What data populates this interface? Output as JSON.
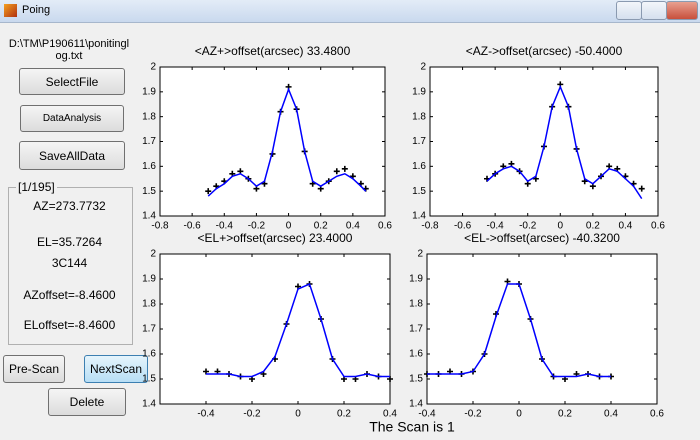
{
  "window": {
    "title": "Poing"
  },
  "panel": {
    "file_path": "D:\\TM\\P190611\\ponitinglog.txt",
    "buttons": [
      "SelectFile",
      "DataAnalysis",
      "SaveAllData",
      "Pre-Scan",
      "NextScan",
      "Delete"
    ],
    "group_label": "[1/195]",
    "info": [
      "AZ=273.7732",
      "EL=35.7264",
      "3C144",
      "AZoffset=-8.4600",
      "ELoffset=-8.4600"
    ]
  },
  "footer": "The Scan  is 1",
  "plots": [
    {
      "type": "scatter-fit",
      "title": "<AZ+>offset(arcsec)  33.4800",
      "xlim": [
        -0.8,
        0.6
      ],
      "xticks": [
        -0.8,
        -0.6,
        -0.4,
        -0.2,
        0,
        0.2,
        0.4,
        0.6
      ],
      "ylim": [
        1.4,
        2
      ],
      "yticks": [
        1.4,
        1.5,
        1.6,
        1.7,
        1.8,
        1.9,
        2
      ],
      "x": [
        -0.5,
        -0.45,
        -0.4,
        -0.35,
        -0.3,
        -0.25,
        -0.2,
        -0.15,
        -0.1,
        -0.05,
        0,
        0.05,
        0.1,
        0.15,
        0.2,
        0.25,
        0.3,
        0.35,
        0.4,
        0.45,
        0.48
      ],
      "series": [
        {
          "color": "#000000",
          "values": [
            1.5,
            1.52,
            1.54,
            1.57,
            1.58,
            1.55,
            1.51,
            1.53,
            1.65,
            1.82,
            1.92,
            1.83,
            1.66,
            1.53,
            1.51,
            1.54,
            1.58,
            1.59,
            1.56,
            1.53,
            1.51
          ]
        },
        {
          "color": "#0000ff",
          "values": [
            1.48,
            1.51,
            1.53,
            1.56,
            1.57,
            1.55,
            1.52,
            1.54,
            1.66,
            1.82,
            1.91,
            1.83,
            1.66,
            1.54,
            1.52,
            1.54,
            1.56,
            1.57,
            1.55,
            1.52,
            1.5
          ]
        }
      ]
    },
    {
      "type": "scatter-fit",
      "title": "<AZ->offset(arcsec)  -50.4000",
      "xlim": [
        -0.8,
        0.6
      ],
      "xticks": [
        -0.8,
        -0.6,
        -0.4,
        -0.2,
        0,
        0.2,
        0.4,
        0.6
      ],
      "ylim": [
        1.4,
        2
      ],
      "yticks": [
        1.4,
        1.5,
        1.6,
        1.7,
        1.8,
        1.9,
        2
      ],
      "x": [
        -0.45,
        -0.4,
        -0.35,
        -0.3,
        -0.25,
        -0.2,
        -0.15,
        -0.1,
        -0.05,
        0,
        0.05,
        0.1,
        0.15,
        0.2,
        0.25,
        0.3,
        0.35,
        0.4,
        0.45,
        0.5
      ],
      "series": [
        {
          "color": "#000000",
          "values": [
            1.55,
            1.57,
            1.6,
            1.61,
            1.58,
            1.53,
            1.55,
            1.68,
            1.84,
            1.93,
            1.84,
            1.67,
            1.54,
            1.52,
            1.56,
            1.6,
            1.59,
            1.56,
            1.53,
            1.51
          ]
        },
        {
          "color": "#0000ff",
          "values": [
            1.54,
            1.57,
            1.59,
            1.6,
            1.58,
            1.54,
            1.56,
            1.68,
            1.84,
            1.92,
            1.84,
            1.67,
            1.55,
            1.53,
            1.56,
            1.59,
            1.58,
            1.55,
            1.52,
            1.47
          ]
        }
      ]
    },
    {
      "type": "scatter-fit",
      "title": "<EL+>offset(arcsec)  23.4000",
      "xlim": [
        -0.6,
        0.4
      ],
      "xticks": [
        -0.4,
        -0.2,
        0,
        0.2,
        0.4
      ],
      "ylim": [
        1.4,
        2
      ],
      "yticks": [
        1.4,
        1.5,
        1.6,
        1.7,
        1.8,
        1.9,
        2
      ],
      "x": [
        -0.4,
        -0.35,
        -0.3,
        -0.25,
        -0.2,
        -0.15,
        -0.1,
        -0.05,
        0,
        0.05,
        0.1,
        0.15,
        0.2,
        0.25,
        0.3,
        0.35,
        0.4
      ],
      "series": [
        {
          "color": "#000000",
          "values": [
            1.53,
            1.53,
            1.52,
            1.51,
            1.5,
            1.52,
            1.58,
            1.72,
            1.87,
            1.88,
            1.74,
            1.58,
            1.5,
            1.5,
            1.52,
            1.51,
            1.5
          ]
        },
        {
          "color": "#0000ff",
          "values": [
            1.52,
            1.52,
            1.52,
            1.51,
            1.51,
            1.53,
            1.59,
            1.72,
            1.86,
            1.88,
            1.74,
            1.58,
            1.51,
            1.51,
            1.52,
            1.51,
            1.51
          ]
        }
      ]
    },
    {
      "type": "scatter-fit",
      "title": "<EL->offset(arcsec)  -40.3200",
      "xlim": [
        -0.4,
        0.6
      ],
      "xticks": [
        -0.4,
        -0.2,
        0,
        0.2,
        0.4,
        0.6
      ],
      "ylim": [
        1.4,
        2
      ],
      "yticks": [
        1.4,
        1.5,
        1.6,
        1.7,
        1.8,
        1.9,
        2
      ],
      "x": [
        -0.4,
        -0.35,
        -0.3,
        -0.25,
        -0.2,
        -0.15,
        -0.1,
        -0.05,
        0,
        0.05,
        0.1,
        0.15,
        0.2,
        0.25,
        0.3,
        0.35,
        0.4
      ],
      "series": [
        {
          "color": "#000000",
          "values": [
            1.52,
            1.52,
            1.53,
            1.52,
            1.53,
            1.6,
            1.76,
            1.89,
            1.88,
            1.74,
            1.58,
            1.51,
            1.5,
            1.52,
            1.52,
            1.51,
            1.51
          ]
        },
        {
          "color": "#0000ff",
          "values": [
            1.52,
            1.52,
            1.52,
            1.52,
            1.53,
            1.6,
            1.75,
            1.88,
            1.88,
            1.74,
            1.58,
            1.51,
            1.51,
            1.51,
            1.52,
            1.51,
            1.51
          ]
        }
      ]
    }
  ]
}
